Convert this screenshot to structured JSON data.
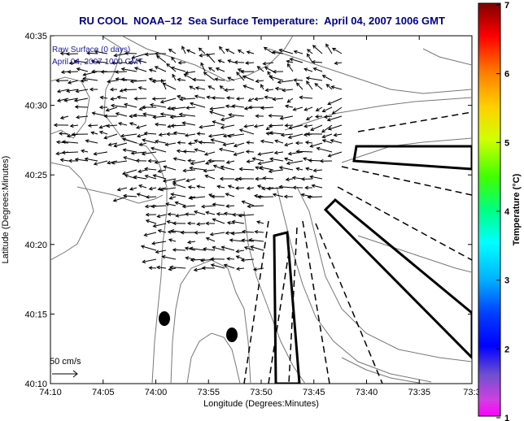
{
  "title": "RU COOL  NOAA–12  Sea Surface Temperature:  April 04, 2007 1006 GMT",
  "overlay_text": {
    "line1": "Raw Surface (0 days)",
    "line2": "April 04, 2007 1000 GMT"
  },
  "scale_label": "50 cm/s",
  "axes": {
    "xlabel": "Longitude (Degrees:Minutes)",
    "ylabel": "Latitude (Degrees:Minutes)",
    "x_ticks": [
      "74:10",
      "74:05",
      "74:00",
      "73:55",
      "73:50",
      "73:45",
      "73:40",
      "73:35",
      "73:3"
    ],
    "y_ticks": [
      "40:35",
      "40:30",
      "40:25",
      "40:20",
      "40:15",
      "40:10"
    ]
  },
  "colorbar": {
    "label": "Temperature (°C)",
    "ticks": [
      "7",
      "6",
      "5",
      "4",
      "3",
      "2",
      "1"
    ]
  },
  "colors": {
    "title": "#00008b",
    "overlay_text": "#1a1a9a",
    "frame": "#000000",
    "contour": "#888888"
  },
  "icons": {
    "vector_arrow": "current-vector-arrow",
    "hf_radar_site": "radar-site-marker"
  }
}
